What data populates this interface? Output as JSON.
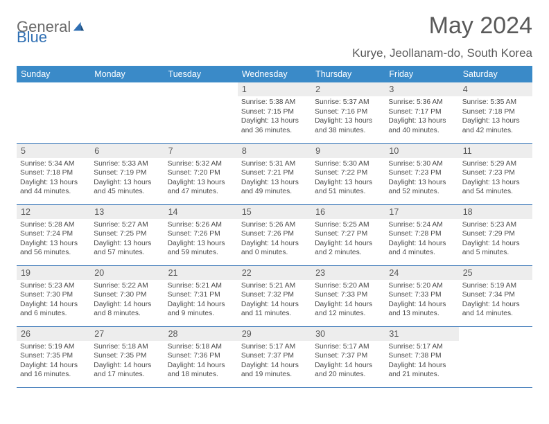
{
  "brand": {
    "part1": "General",
    "part2": "Blue"
  },
  "title": "May 2024",
  "location": "Kurye, Jeollanam-do, South Korea",
  "colors": {
    "header_bg": "#3a8ac8",
    "header_text": "#ffffff",
    "row_border": "#2f6fb3",
    "daynum_bg": "#ededed",
    "body_text": "#4a4a4a",
    "title_text": "#595959",
    "logo_gray": "#6a6a6a",
    "logo_blue": "#2f6fb3"
  },
  "weekdays": [
    "Sunday",
    "Monday",
    "Tuesday",
    "Wednesday",
    "Thursday",
    "Friday",
    "Saturday"
  ],
  "weeks": [
    [
      {
        "n": "",
        "sr": "",
        "ss": "",
        "dl": ""
      },
      {
        "n": "",
        "sr": "",
        "ss": "",
        "dl": ""
      },
      {
        "n": "",
        "sr": "",
        "ss": "",
        "dl": ""
      },
      {
        "n": "1",
        "sr": "Sunrise: 5:38 AM",
        "ss": "Sunset: 7:15 PM",
        "dl": "Daylight: 13 hours and 36 minutes."
      },
      {
        "n": "2",
        "sr": "Sunrise: 5:37 AM",
        "ss": "Sunset: 7:16 PM",
        "dl": "Daylight: 13 hours and 38 minutes."
      },
      {
        "n": "3",
        "sr": "Sunrise: 5:36 AM",
        "ss": "Sunset: 7:17 PM",
        "dl": "Daylight: 13 hours and 40 minutes."
      },
      {
        "n": "4",
        "sr": "Sunrise: 5:35 AM",
        "ss": "Sunset: 7:18 PM",
        "dl": "Daylight: 13 hours and 42 minutes."
      }
    ],
    [
      {
        "n": "5",
        "sr": "Sunrise: 5:34 AM",
        "ss": "Sunset: 7:18 PM",
        "dl": "Daylight: 13 hours and 44 minutes."
      },
      {
        "n": "6",
        "sr": "Sunrise: 5:33 AM",
        "ss": "Sunset: 7:19 PM",
        "dl": "Daylight: 13 hours and 45 minutes."
      },
      {
        "n": "7",
        "sr": "Sunrise: 5:32 AM",
        "ss": "Sunset: 7:20 PM",
        "dl": "Daylight: 13 hours and 47 minutes."
      },
      {
        "n": "8",
        "sr": "Sunrise: 5:31 AM",
        "ss": "Sunset: 7:21 PM",
        "dl": "Daylight: 13 hours and 49 minutes."
      },
      {
        "n": "9",
        "sr": "Sunrise: 5:30 AM",
        "ss": "Sunset: 7:22 PM",
        "dl": "Daylight: 13 hours and 51 minutes."
      },
      {
        "n": "10",
        "sr": "Sunrise: 5:30 AM",
        "ss": "Sunset: 7:23 PM",
        "dl": "Daylight: 13 hours and 52 minutes."
      },
      {
        "n": "11",
        "sr": "Sunrise: 5:29 AM",
        "ss": "Sunset: 7:23 PM",
        "dl": "Daylight: 13 hours and 54 minutes."
      }
    ],
    [
      {
        "n": "12",
        "sr": "Sunrise: 5:28 AM",
        "ss": "Sunset: 7:24 PM",
        "dl": "Daylight: 13 hours and 56 minutes."
      },
      {
        "n": "13",
        "sr": "Sunrise: 5:27 AM",
        "ss": "Sunset: 7:25 PM",
        "dl": "Daylight: 13 hours and 57 minutes."
      },
      {
        "n": "14",
        "sr": "Sunrise: 5:26 AM",
        "ss": "Sunset: 7:26 PM",
        "dl": "Daylight: 13 hours and 59 minutes."
      },
      {
        "n": "15",
        "sr": "Sunrise: 5:26 AM",
        "ss": "Sunset: 7:26 PM",
        "dl": "Daylight: 14 hours and 0 minutes."
      },
      {
        "n": "16",
        "sr": "Sunrise: 5:25 AM",
        "ss": "Sunset: 7:27 PM",
        "dl": "Daylight: 14 hours and 2 minutes."
      },
      {
        "n": "17",
        "sr": "Sunrise: 5:24 AM",
        "ss": "Sunset: 7:28 PM",
        "dl": "Daylight: 14 hours and 4 minutes."
      },
      {
        "n": "18",
        "sr": "Sunrise: 5:23 AM",
        "ss": "Sunset: 7:29 PM",
        "dl": "Daylight: 14 hours and 5 minutes."
      }
    ],
    [
      {
        "n": "19",
        "sr": "Sunrise: 5:23 AM",
        "ss": "Sunset: 7:30 PM",
        "dl": "Daylight: 14 hours and 6 minutes."
      },
      {
        "n": "20",
        "sr": "Sunrise: 5:22 AM",
        "ss": "Sunset: 7:30 PM",
        "dl": "Daylight: 14 hours and 8 minutes."
      },
      {
        "n": "21",
        "sr": "Sunrise: 5:21 AM",
        "ss": "Sunset: 7:31 PM",
        "dl": "Daylight: 14 hours and 9 minutes."
      },
      {
        "n": "22",
        "sr": "Sunrise: 5:21 AM",
        "ss": "Sunset: 7:32 PM",
        "dl": "Daylight: 14 hours and 11 minutes."
      },
      {
        "n": "23",
        "sr": "Sunrise: 5:20 AM",
        "ss": "Sunset: 7:33 PM",
        "dl": "Daylight: 14 hours and 12 minutes."
      },
      {
        "n": "24",
        "sr": "Sunrise: 5:20 AM",
        "ss": "Sunset: 7:33 PM",
        "dl": "Daylight: 14 hours and 13 minutes."
      },
      {
        "n": "25",
        "sr": "Sunrise: 5:19 AM",
        "ss": "Sunset: 7:34 PM",
        "dl": "Daylight: 14 hours and 14 minutes."
      }
    ],
    [
      {
        "n": "26",
        "sr": "Sunrise: 5:19 AM",
        "ss": "Sunset: 7:35 PM",
        "dl": "Daylight: 14 hours and 16 minutes."
      },
      {
        "n": "27",
        "sr": "Sunrise: 5:18 AM",
        "ss": "Sunset: 7:35 PM",
        "dl": "Daylight: 14 hours and 17 minutes."
      },
      {
        "n": "28",
        "sr": "Sunrise: 5:18 AM",
        "ss": "Sunset: 7:36 PM",
        "dl": "Daylight: 14 hours and 18 minutes."
      },
      {
        "n": "29",
        "sr": "Sunrise: 5:17 AM",
        "ss": "Sunset: 7:37 PM",
        "dl": "Daylight: 14 hours and 19 minutes."
      },
      {
        "n": "30",
        "sr": "Sunrise: 5:17 AM",
        "ss": "Sunset: 7:37 PM",
        "dl": "Daylight: 14 hours and 20 minutes."
      },
      {
        "n": "31",
        "sr": "Sunrise: 5:17 AM",
        "ss": "Sunset: 7:38 PM",
        "dl": "Daylight: 14 hours and 21 minutes."
      },
      {
        "n": "",
        "sr": "",
        "ss": "",
        "dl": ""
      }
    ]
  ]
}
